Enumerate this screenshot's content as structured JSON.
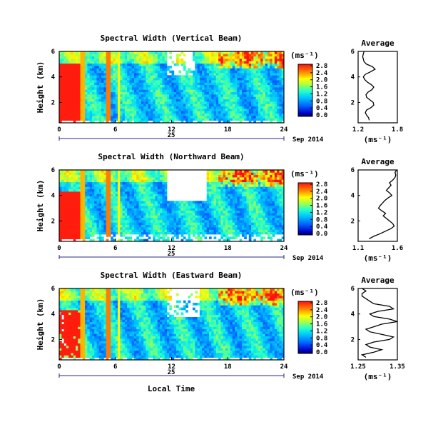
{
  "chart_data": [
    {
      "type": "heatmap",
      "title": "Spectral Width (Vertical Beam)",
      "ylabel": "Height (km)",
      "x_ticks": [
        "0",
        "6",
        "12",
        "18",
        "24"
      ],
      "x_tick_values": [
        0,
        6,
        12,
        18,
        24
      ],
      "xlim": [
        0,
        24
      ],
      "y_ticks": [
        "2",
        "4",
        "6"
      ],
      "y_tick_values": [
        2,
        4,
        6
      ],
      "ylim": [
        0.4,
        6
      ],
      "date_day": "25",
      "date_label": "Sep 2014",
      "colorbar": {
        "unit": "(ms⁻¹)",
        "tick_labels": [
          "0.0",
          "0.4",
          "0.8",
          "1.2",
          "1.6",
          "2.0",
          "2.4",
          "2.8"
        ],
        "range": [
          0,
          3.0
        ]
      },
      "average": {
        "title": "Average",
        "xlabel": "(ms⁻¹)",
        "x_ticks": [
          "1.2",
          "1.8"
        ],
        "xlim": [
          1.2,
          1.8
        ],
        "y_ticks": [
          "2",
          "4",
          "6"
        ],
        "ylim": [
          0.4,
          6
        ],
        "heights": [
          0.6,
          0.8,
          1.0,
          1.2,
          1.4,
          1.6,
          1.8,
          2.0,
          2.2,
          2.4,
          2.6,
          2.8,
          3.0,
          3.2,
          3.4,
          3.6,
          3.8,
          4.0,
          4.2,
          4.4,
          4.6,
          4.8,
          5.0,
          5.2,
          5.4,
          5.6,
          5.8,
          6.0
        ],
        "values": [
          1.37,
          1.36,
          1.33,
          1.31,
          1.33,
          1.4,
          1.44,
          1.43,
          1.38,
          1.33,
          1.32,
          1.35,
          1.41,
          1.44,
          1.4,
          1.34,
          1.3,
          1.28,
          1.31,
          1.39,
          1.46,
          1.42,
          1.33,
          1.29,
          1.28,
          1.27,
          1.28,
          1.29
        ]
      }
    },
    {
      "type": "heatmap",
      "title": "Spectral Width (Northward Beam)",
      "ylabel": "Height (km)",
      "x_ticks": [
        "0",
        "6",
        "12",
        "18",
        "24"
      ],
      "x_tick_values": [
        0,
        6,
        12,
        18,
        24
      ],
      "xlim": [
        0,
        24
      ],
      "y_ticks": [
        "2",
        "4",
        "6"
      ],
      "y_tick_values": [
        2,
        4,
        6
      ],
      "ylim": [
        0.4,
        6
      ],
      "date_day": "25",
      "date_label": "Sep 2014",
      "colorbar": {
        "unit": "(ms⁻¹)",
        "tick_labels": [
          "0.0",
          "0.4",
          "0.8",
          "1.2",
          "1.6",
          "2.0",
          "2.4",
          "2.8"
        ],
        "range": [
          0,
          3.0
        ]
      },
      "average": {
        "title": "Average",
        "xlabel": "(ms⁻¹)",
        "x_ticks": [
          "1.1",
          "1.6"
        ],
        "xlim": [
          1.1,
          1.6
        ],
        "y_ticks": [
          "2",
          "4",
          "6"
        ],
        "ylim": [
          0.4,
          6
        ],
        "heights": [
          0.6,
          0.8,
          1.0,
          1.2,
          1.4,
          1.6,
          1.8,
          2.0,
          2.2,
          2.4,
          2.6,
          2.8,
          3.0,
          3.2,
          3.4,
          3.6,
          3.8,
          4.0,
          4.2,
          4.4,
          4.6,
          4.8,
          5.0,
          5.2,
          5.4,
          5.6,
          5.8,
          6.0
        ],
        "values": [
          1.24,
          1.3,
          1.38,
          1.45,
          1.52,
          1.56,
          1.54,
          1.5,
          1.46,
          1.42,
          1.45,
          1.4,
          1.36,
          1.38,
          1.41,
          1.44,
          1.48,
          1.53,
          1.5,
          1.46,
          1.49,
          1.52,
          1.5,
          1.54,
          1.57,
          1.58,
          1.57,
          1.59
        ]
      }
    },
    {
      "type": "heatmap",
      "title": "Spectral Width (Eastward Beam)",
      "ylabel": "Height (km)",
      "xlabel": "Local Time",
      "x_ticks": [
        "0",
        "6",
        "12",
        "18",
        "24"
      ],
      "x_tick_values": [
        0,
        6,
        12,
        18,
        24
      ],
      "xlim": [
        0,
        24
      ],
      "y_ticks": [
        "2",
        "4",
        "6"
      ],
      "y_tick_values": [
        2,
        4,
        6
      ],
      "ylim": [
        0.4,
        6
      ],
      "date_day": "25",
      "date_label": "Sep 2014",
      "colorbar": {
        "unit": "(ms⁻¹)",
        "tick_labels": [
          "0.0",
          "0.4",
          "0.8",
          "1.2",
          "1.6",
          "2.0",
          "2.4",
          "2.8"
        ],
        "range": [
          0,
          3.0
        ]
      },
      "average": {
        "title": "Average",
        "xlabel": "(ms⁻¹)",
        "x_ticks": [
          "1.25",
          "1.35"
        ],
        "xlim": [
          1.25,
          1.35
        ],
        "y_ticks": [
          "2",
          "4",
          "6"
        ],
        "ylim": [
          0.4,
          6
        ],
        "heights": [
          0.6,
          0.8,
          1.0,
          1.2,
          1.4,
          1.6,
          1.8,
          2.0,
          2.2,
          2.4,
          2.6,
          2.8,
          3.0,
          3.2,
          3.4,
          3.6,
          3.8,
          4.0,
          4.2,
          4.4,
          4.6,
          4.8,
          5.0,
          5.2,
          5.4,
          5.6,
          5.8,
          6.0
        ],
        "values": [
          1.27,
          1.26,
          1.29,
          1.31,
          1.28,
          1.27,
          1.29,
          1.33,
          1.34,
          1.31,
          1.28,
          1.27,
          1.29,
          1.31,
          1.35,
          1.33,
          1.29,
          1.28,
          1.3,
          1.34,
          1.33,
          1.29,
          1.28,
          1.27,
          1.26,
          1.26,
          1.27,
          1.26
        ]
      }
    }
  ]
}
